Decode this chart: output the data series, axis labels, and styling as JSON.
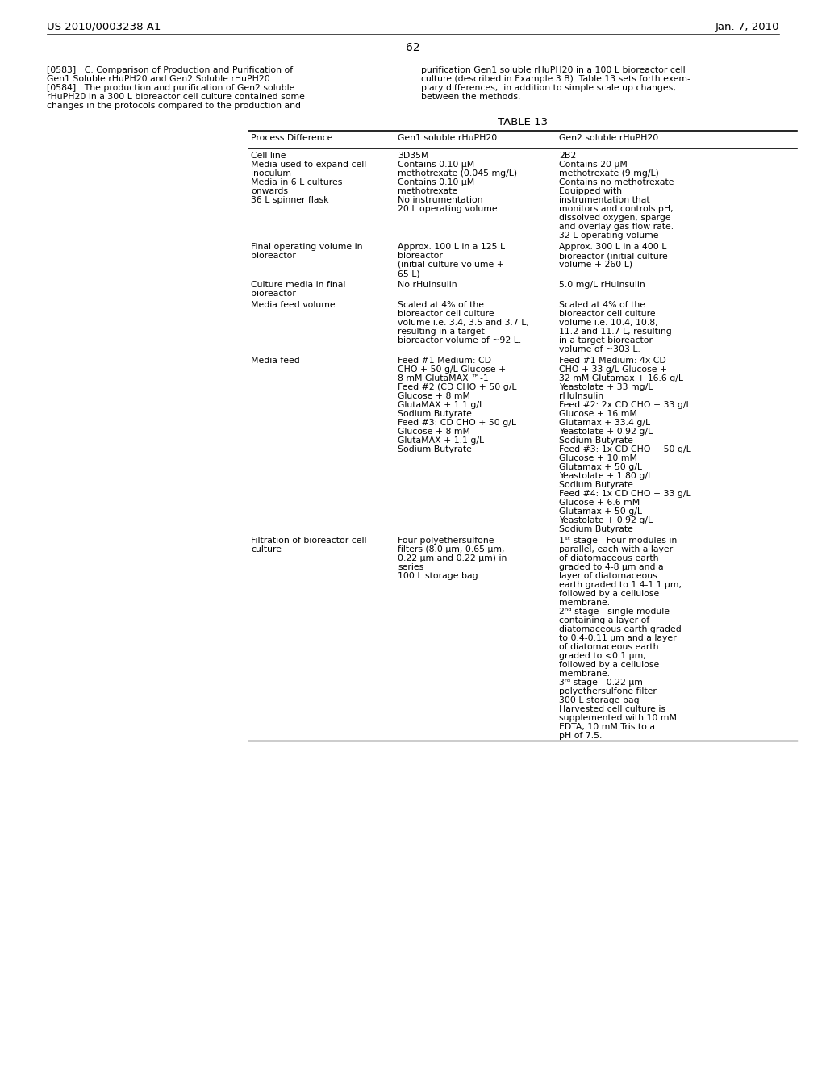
{
  "header_left": "US 2010/0003238 A1",
  "header_right": "Jan. 7, 2010",
  "page_number": "62",
  "left_col_lines": [
    "[0583]   C. Comparison of Production and Purification of",
    "Gen1 Soluble rHuPH20 and Gen2 Soluble rHuPH20",
    "[0584]   The production and purification of Gen2 soluble",
    "rHuPH20 in a 300 L bioreactor cell culture contained some",
    "changes in the protocols compared to the production and"
  ],
  "right_col_lines": [
    "purification Gen1 soluble rHuPH20 in a 100 L bioreactor cell",
    "culture (described in Example 3.B). Table 13 sets forth exem-",
    "plary differences,  in addition to simple scale up changes,",
    "between the methods."
  ],
  "table_title": "TABLE 13",
  "col_headers": [
    "Process Difference",
    "Gen1 soluble rHuPH20",
    "Gen2 soluble rHuPH20"
  ],
  "rows": [
    [
      "Cell line\nMedia used to expand cell\ninoculum\nMedia in 6 L cultures\nonwards\n36 L spinner flask",
      "3D35M\nContains 0.10 μM\nmethotrexate (0.045 mg/L)\nContains 0.10 μM\nmethotrexate\nNo instrumentation\n20 L operating volume.",
      "2B2\nContains 20 μM\nmethotrexate (9 mg/L)\nContains no methotrexate\nEquipped with\ninstrumentation that\nmonitors and controls pH,\ndissolved oxygen, sparge\nand overlay gas flow rate.\n32 L operating volume"
    ],
    [
      "Final operating volume in\nbioreactor",
      "Approx. 100 L in a 125 L\nbioreactor\n(initial culture volume +\n65 L)",
      "Approx. 300 L in a 400 L\nbioreactor (initial culture\nvolume + 260 L)"
    ],
    [
      "Culture media in final\nbioreactor",
      "No rHuInsulin",
      "5.0 mg/L rHuInsulin"
    ],
    [
      "Media feed volume",
      "Scaled at 4% of the\nbioreactor cell culture\nvolume i.e. 3.4, 3.5 and 3.7 L,\nresulting in a target\nbioreactor volume of ~92 L.",
      "Scaled at 4% of the\nbioreactor cell culture\nvolume i.e. 10.4, 10.8,\n11.2 and 11.7 L, resulting\nin a target bioreactor\nvolume of ~303 L."
    ],
    [
      "Media feed",
      "Feed #1 Medium: CD\nCHO + 50 g/L Glucose +\n8 mM GlutaMAX ™-1\nFeed #2 (CD CHO + 50 g/L\nGlucose + 8 mM\nGlutaMAX + 1.1 g/L\nSodium Butyrate\nFeed #3: CD CHO + 50 g/L\nGlucose + 8 mM\nGlutaMAX + 1.1 g/L\nSodium Butyrate",
      "Feed #1 Medium: 4x CD\nCHO + 33 g/L Glucose +\n32 mM Glutamax + 16.6 g/L\nYeastolate + 33 mg/L\nrHuInsulin\nFeed #2: 2x CD CHO + 33 g/L\nGlucose + 16 mM\nGlutamax + 33.4 g/L\nYeastolate + 0.92 g/L\nSodium Butyrate\nFeed #3: 1x CD CHO + 50 g/L\nGlucose + 10 mM\nGlutamax + 50 g/L\nYeastolate + 1.80 g/L\nSodium Butyrate\nFeed #4: 1x CD CHO + 33 g/L\nGlucose + 6.6 mM\nGlutamax + 50 g/L\nYeastolate + 0.92 g/L\nSodium Butyrate"
    ],
    [
      "Filtration of bioreactor cell\nculture",
      "Four polyethersulfone\nfilters (8.0 μm, 0.65 μm,\n0.22 μm and 0.22 μm) in\nseries\n100 L storage bag",
      "1ˢᵗ stage - Four modules in\nparallel, each with a layer\nof diatomaceous earth\ngraded to 4-8 μm and a\nlayer of diatomaceous\nearth graded to 1.4-1.1 μm,\nfollowed by a cellulose\nmembrane.\n2ⁿᵈ stage - single module\ncontaining a layer of\ndiatomaceous earth graded\nto 0.4-0.11 μm and a layer\nof diatomaceous earth\ngraded to <0.1 μm,\nfollowed by a cellulose\nmembrane.\n3ʳᵈ stage - 0.22 μm\npolyethersulfone filter\n300 L storage bag\nHarvested cell culture is\nsupplemented with 10 mM\nEDTA, 10 mM Tris to a\npH of 7.5."
    ]
  ],
  "background_color": "#ffffff",
  "text_color": "#000000",
  "fs": 7.8,
  "hfs": 9.5,
  "leading": 11.0
}
